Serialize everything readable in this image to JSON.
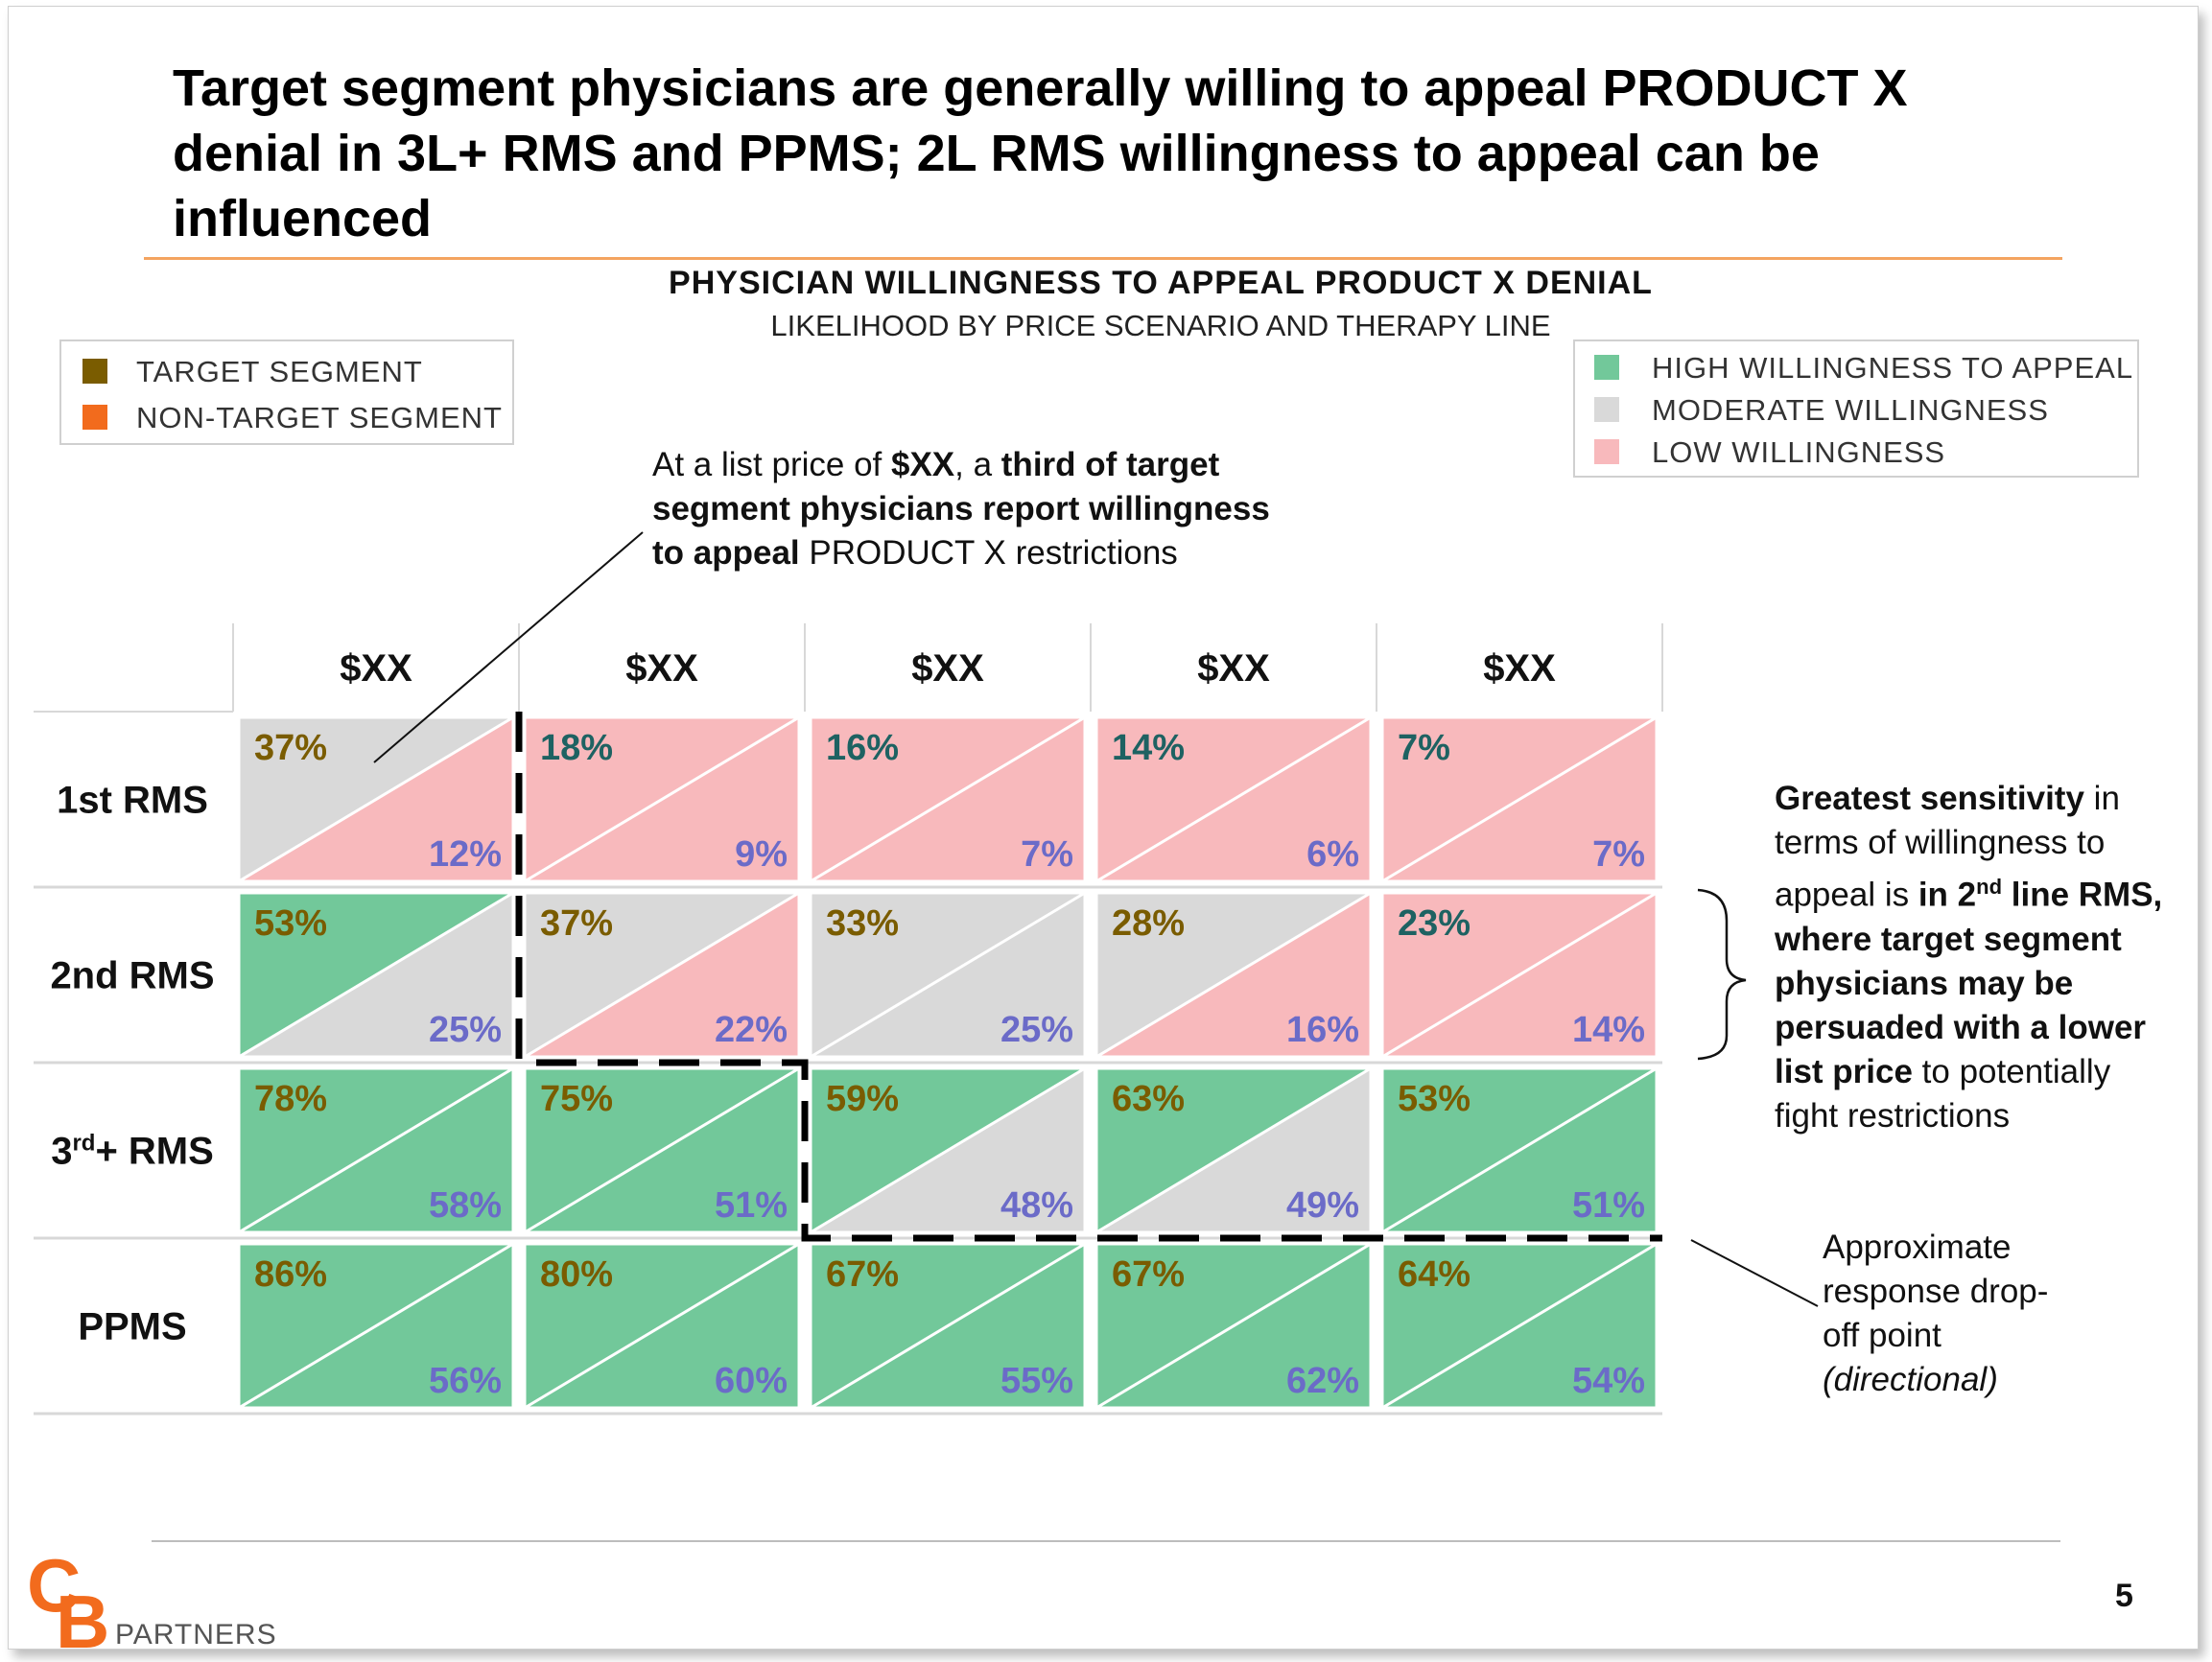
{
  "slide": {
    "title_lines": [
      "Target segment physicians are generally willing to appeal PRODUCT X",
      "denial in 3L+ RMS and PPMS; 2L RMS willingness to appeal can be",
      "influenced"
    ],
    "page_number": "5",
    "logo": {
      "letters": "CB",
      "word": "PARTNERS"
    },
    "colors": {
      "accent_orange": "#F4A460",
      "logo_orange": "#F26B1D"
    }
  },
  "chart_data": {
    "type": "table",
    "title": "PHYSICIAN  WILLINGNESS  TO APPEAL  PRODUCT X DENIAL",
    "subtitle": "LIKELIHOOD BY PRICE SCENARIO AND THERAPY LINE",
    "columns": [
      "$XX",
      "$XX",
      "$XX",
      "$XX",
      "$XX"
    ],
    "rows": [
      "1st RMS",
      "2nd RMS",
      "3rd+ RMS",
      "PPMS"
    ],
    "target_segment": [
      [
        "37%",
        "18%",
        "16%",
        "14%",
        "7%"
      ],
      [
        "53%",
        "37%",
        "33%",
        "28%",
        "23%"
      ],
      [
        "78%",
        "75%",
        "59%",
        "63%",
        "53%"
      ],
      [
        "86%",
        "80%",
        "67%",
        "67%",
        "64%"
      ]
    ],
    "non_target_segment": [
      [
        "12%",
        "9%",
        "7%",
        "6%",
        "7%"
      ],
      [
        "25%",
        "22%",
        "25%",
        "16%",
        "14%"
      ],
      [
        "58%",
        "51%",
        "48%",
        "49%",
        "51%"
      ],
      [
        "56%",
        "60%",
        "55%",
        "62%",
        "54%"
      ]
    ],
    "target_level": [
      [
        "moderate",
        "low",
        "low",
        "low",
        "low"
      ],
      [
        "high",
        "moderate",
        "moderate",
        "moderate",
        "low"
      ],
      [
        "high",
        "high",
        "high",
        "high",
        "high"
      ],
      [
        "high",
        "high",
        "high",
        "high",
        "high"
      ]
    ],
    "non_target_level": [
      [
        "low",
        "low",
        "low",
        "low",
        "low"
      ],
      [
        "moderate",
        "low",
        "moderate",
        "low",
        "low"
      ],
      [
        "high",
        "high",
        "moderate",
        "moderate",
        "high"
      ],
      [
        "high",
        "high",
        "high",
        "high",
        "high"
      ]
    ],
    "level_colors": {
      "high": "#72C89A",
      "moderate": "#D9D9D9",
      "low": "#F8B9BC"
    },
    "text_colors": {
      "target_segment": "#7A5C00",
      "non_target_segment": "#6B6BC8",
      "target_low": "#1E6262"
    },
    "segment_legend": [
      {
        "label": "TARGET  SEGMENT",
        "color": "#7A5C00"
      },
      {
        "label": "NON-TARGET  SEGMENT",
        "color": "#F26B1D"
      }
    ],
    "willingness_legend": [
      {
        "label": "HIGH  WILLINGNESS  TO  APPEAL",
        "color": "#72C89A"
      },
      {
        "label": "MODERATE  WILLINGNESS",
        "color": "#D9D9D9"
      },
      {
        "label": "LOW WILLINGNESS",
        "color": "#F8B9BC"
      }
    ],
    "dropoff_boundary": "dashed",
    "annotations": {
      "callout_top": {
        "prefix": "At a list price of ",
        "bold1": "$XX",
        "mid": ", a ",
        "bold2": "third of target segment physicians report willingness  to appeal",
        "suffix": " PRODUCT  X restrictions"
      },
      "callout_right": {
        "bold1": "Greatest sensitivity",
        "t1": " in terms of willingness  to appeal is ",
        "bold2": "in 2",
        "sup": "nd",
        "bold3": " line RMS, where target segment physicians may be persuaded with a lower list price",
        "t2": " to potentially  fight restrictions"
      },
      "callout_dropoff": {
        "text": "Approximate response drop-off point",
        "italic": "(directional)"
      }
    }
  }
}
